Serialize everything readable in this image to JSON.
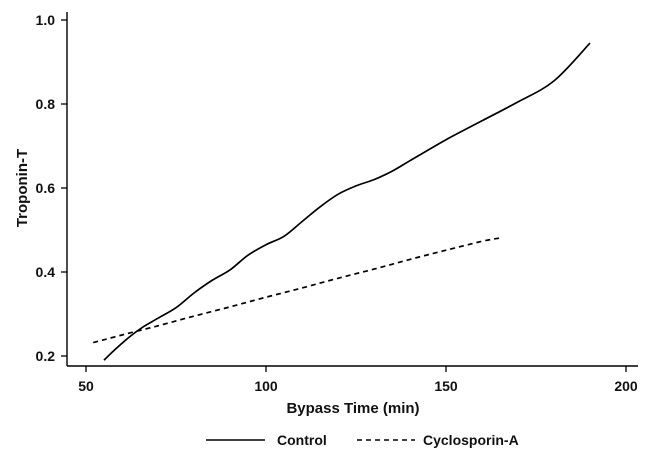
{
  "chart_data": {
    "type": "line",
    "xlabel": "Bypass Time (min)",
    "ylabel": "Troponin-T",
    "xlim": [
      50,
      200
    ],
    "ylim": [
      0.2,
      1.0
    ],
    "xticks": [
      50,
      100,
      150,
      200
    ],
    "yticks": [
      0.2,
      0.4,
      0.6,
      0.8,
      1.0
    ],
    "ytick_labels": [
      "0.2",
      "0.4",
      "0.6",
      "0.8",
      "1.0"
    ],
    "grid": false,
    "legend_position": "bottom",
    "series": [
      {
        "name": "Control",
        "style": "solid",
        "color": "#000000",
        "x": [
          55,
          58,
          62,
          66,
          70,
          75,
          80,
          85,
          90,
          95,
          100,
          105,
          110,
          115,
          120,
          125,
          130,
          135,
          140,
          150,
          160,
          170,
          180,
          190
        ],
        "y": [
          0.19,
          0.215,
          0.245,
          0.27,
          0.29,
          0.315,
          0.35,
          0.38,
          0.405,
          0.44,
          0.465,
          0.485,
          0.52,
          0.555,
          0.585,
          0.605,
          0.62,
          0.64,
          0.665,
          0.715,
          0.76,
          0.805,
          0.855,
          0.945
        ]
      },
      {
        "name": "Cyclosporin-A",
        "style": "dashed",
        "color": "#000000",
        "x": [
          52,
          60,
          70,
          80,
          90,
          100,
          110,
          120,
          130,
          140,
          150,
          160,
          165
        ],
        "y": [
          0.232,
          0.25,
          0.272,
          0.295,
          0.317,
          0.34,
          0.362,
          0.385,
          0.407,
          0.43,
          0.452,
          0.473,
          0.481
        ]
      }
    ]
  }
}
